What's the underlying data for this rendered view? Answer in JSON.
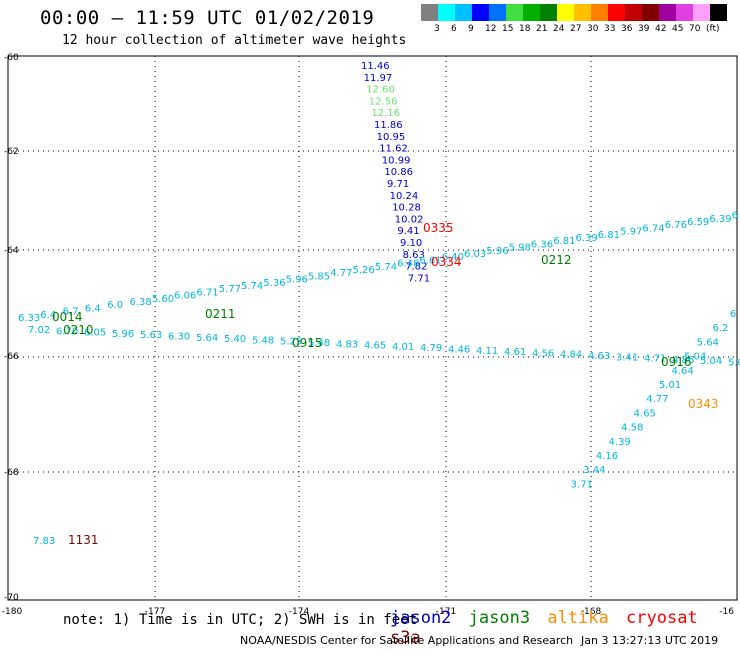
{
  "header": {
    "title": "00:00 – 11:59 UTC 01/02/2019",
    "subtitle": "12 hour collection of altimeter wave heights"
  },
  "legend": {
    "colors": [
      "#808080",
      "#00ffff",
      "#00c0ff",
      "#0000ff",
      "#0070ff",
      "#40e040",
      "#00b000",
      "#008000",
      "#ffff00",
      "#ffc000",
      "#ff8000",
      "#ff0000",
      "#c00000",
      "#800000",
      "#a000a0",
      "#e040e0",
      "#ffa0ff",
      "#000000"
    ],
    "ticks": [
      "3",
      "6",
      "9",
      "12",
      "15",
      "18",
      "21",
      "24",
      "27",
      "30",
      "33",
      "36",
      "39",
      "42",
      "45",
      "70",
      "(ft)"
    ]
  },
  "axes": {
    "x_ticks": [
      "-180",
      "-177",
      "-174",
      "-171",
      "-168",
      "-16"
    ],
    "y_ticks": [
      "-60",
      "-62",
      "-64",
      "-66",
      "-68",
      "-70"
    ]
  },
  "colors": {
    "jason2": "#0000c8",
    "jason3": "#008000",
    "altika": "#ff8c00",
    "cryosat": "#ff0000",
    "s3a": "#800000",
    "cyan": "#00b8e0",
    "lightgreen": "#70e070"
  },
  "tracks": {
    "jason2_values": [
      "11.46",
      "11.97",
      "12.60",
      "12.56",
      "12.16",
      "11.86",
      "10.95",
      "11.62",
      "10.99",
      "10.86",
      "9.71",
      "10.24",
      "10.28",
      "10.02",
      "9.41",
      "9.10",
      "8.63",
      "7.82",
      "7.71"
    ],
    "upper_track": [
      "6.33",
      "6.4",
      "6.7",
      "6.4",
      "6.0",
      "6.38",
      "5.60",
      "6.06",
      "6.71",
      "5.77",
      "5.74",
      "5.36",
      "5.96",
      "5.85",
      "4.77",
      "5.26",
      "5.74",
      "6.48",
      "6.61",
      "6.40",
      "6.03",
      "5.96",
      "5.98",
      "6.36",
      "6.81",
      "6.39",
      "6.81",
      "5.97",
      "6.74",
      "6.76",
      "6.59",
      "6.39",
      "6"
    ],
    "lower_track": [
      "7.02",
      "6.70",
      "6.05",
      "5.96",
      "5.63",
      "6.30",
      "5.64",
      "5.40",
      "5.48",
      "5.25",
      "5.48",
      "4.83",
      "4.65",
      "4.01",
      "4.79",
      "4.46",
      "4.11",
      "4.61",
      "4.56",
      "4.84",
      "4.63",
      "3.41",
      "4.71",
      "4.86",
      "5.04",
      "5.0"
    ],
    "se_track": [
      "6",
      "6.2",
      "5.64",
      "5.04",
      "4.64",
      "5.01",
      "4.77",
      "4.65",
      "4.58",
      "4.39",
      "4.16",
      "3.44",
      "3.71"
    ],
    "isolated_value": "7.83"
  },
  "time_labels": {
    "t0014": "0014",
    "t0210": "0210",
    "t0211": "0211",
    "t0915": "0915",
    "t0212": "0212",
    "t0916": "0916",
    "t0335": "0335",
    "t0334": "0334",
    "t0343": "0343",
    "t1131": "1131"
  },
  "footer": {
    "note": "note: 1) Time is in UTC; 2) SWH is in feet",
    "sat_jason2": "jason2",
    "sat_jason3": "jason3",
    "sat_altika": "altika",
    "sat_cryosat": "cryosat",
    "sat_s3a": "s3a",
    "credit": "NOAA/NESDIS Center for Satellite Applications and Research",
    "datestamp": "Jan  3 13:27:13 UTC 2019"
  }
}
